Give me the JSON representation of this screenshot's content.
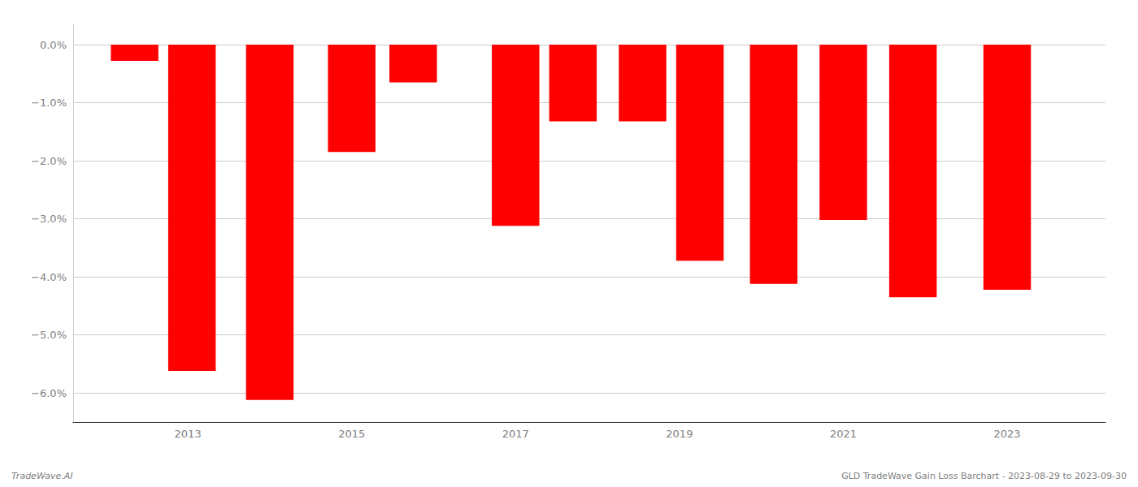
{
  "chart_data": {
    "type": "bar",
    "x": [
      2012.35,
      2013.05,
      2014.0,
      2015.0,
      2015.75,
      2017.0,
      2017.7,
      2018.55,
      2019.25,
      2020.15,
      2021.0,
      2021.85,
      2023.0
    ],
    "values": [
      -0.28,
      -5.62,
      -6.12,
      -1.85,
      -0.65,
      -3.12,
      -1.32,
      -1.32,
      -3.72,
      -4.12,
      -3.02,
      -4.35,
      -4.22
    ],
    "color": "#ff0000",
    "xlim": [
      2011.6,
      2024.2
    ],
    "xticks": [
      2013,
      2015,
      2017,
      2019,
      2021,
      2023
    ],
    "ylim": [
      -6.5,
      0.35
    ],
    "yticks": [
      {
        "value": 0.0,
        "label": "0.0%"
      },
      {
        "value": -1.0,
        "label": "−1.0%"
      },
      {
        "value": -2.0,
        "label": "−2.0%"
      },
      {
        "value": -3.0,
        "label": "−3.0%"
      },
      {
        "value": -4.0,
        "label": "−4.0%"
      },
      {
        "value": -5.0,
        "label": "−5.0%"
      },
      {
        "value": -6.0,
        "label": "−6.0%"
      }
    ],
    "grid": true,
    "annotations": [
      "TradeWave.AI",
      "GLD TradeWave Gain Loss Barchart - 2023-08-29 to 2023-09-30"
    ]
  }
}
